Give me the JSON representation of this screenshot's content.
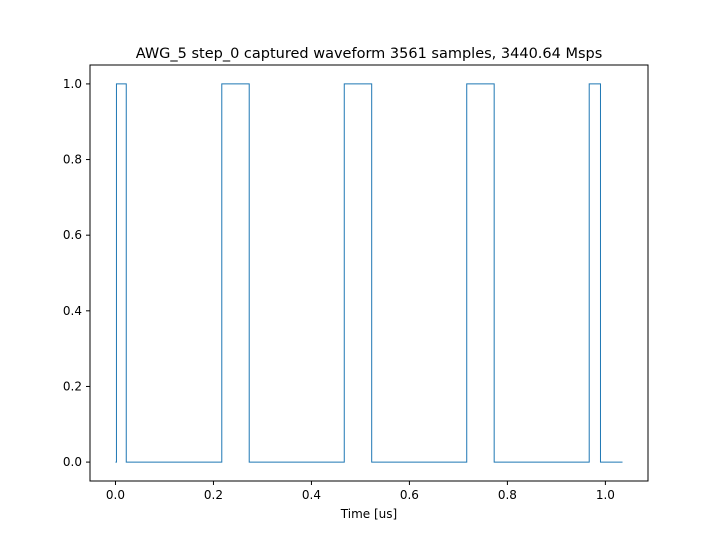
{
  "chart_data": {
    "type": "line",
    "title": "AWG_5 step_0 captured waveform 3561 samples, 3440.64 Msps",
    "xlabel": "Time [us]",
    "ylabel": "",
    "xlim": [
      -0.052,
      1.087
    ],
    "ylim": [
      -0.05,
      1.05
    ],
    "x_ticks": [
      0.0,
      0.2,
      0.4,
      0.6,
      0.8,
      1.0
    ],
    "x_tick_labels": [
      "0.0",
      "0.2",
      "0.4",
      "0.6",
      "0.8",
      "1.0"
    ],
    "y_ticks": [
      0.0,
      0.2,
      0.4,
      0.6,
      0.8,
      1.0
    ],
    "y_tick_labels": [
      "0.0",
      "0.2",
      "0.4",
      "0.6",
      "0.8",
      "1.0"
    ],
    "grid": false,
    "legend": "none",
    "color": "#1f77b4",
    "series": [
      {
        "step": "post",
        "x": [
          0.0,
          0.002,
          0.022,
          0.217,
          0.273,
          0.467,
          0.523,
          0.717,
          0.773,
          0.967,
          0.99,
          1.035
        ],
        "values": [
          0,
          1,
          0,
          1,
          0,
          1,
          0,
          1,
          0,
          1,
          0,
          0
        ]
      }
    ]
  }
}
